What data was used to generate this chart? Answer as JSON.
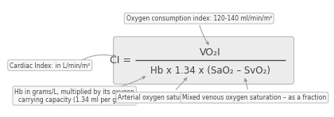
{
  "bg_color": "#ffffff",
  "main_box_color": "#ececec",
  "main_box_border": "#bbbbbb",
  "annotation_box_color": "#f8f8f8",
  "annotation_box_border": "#bbbbbb",
  "formula_ci": "CI = ",
  "formula_numerator": "VO₂I",
  "formula_denominator": "Hb x 1.34 x (SaO₂ – SvO₂)",
  "label_top": "Oxygen consumption index: 120-140 ml/min/m²",
  "label_left": "Cardiac Index: in L/min/m²",
  "label_bottom_left": "Hb in grams/L, multiplied by its oxygen\ncarrying capacity (1.34 ml per gram)",
  "label_bottom_mid": "Arterial oxygen saturation – as a fraction",
  "label_bottom_right": "Mixed venous oxygen saturation – as a fraction",
  "text_color": "#444444",
  "font_size_formula_num": 9,
  "font_size_formula_den": 8.5,
  "font_size_ci": 9,
  "font_size_label": 5.5,
  "arrow_color": "#999999"
}
